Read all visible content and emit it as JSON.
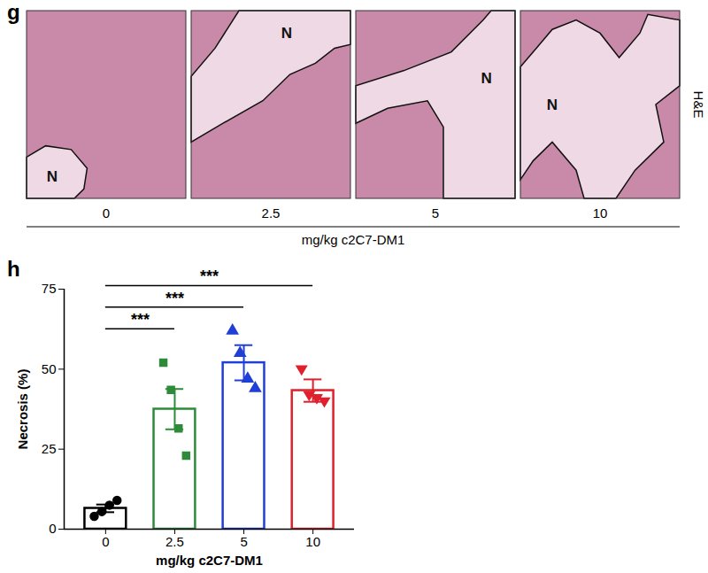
{
  "panel_g": {
    "label": "g",
    "stain": "H&E",
    "region_label": "N",
    "conditions": [
      "0",
      "2.5",
      "5",
      "10"
    ],
    "xlabel": "mg/kg c2C7-DM1"
  },
  "chart_data": {
    "type": "bar",
    "label": "h",
    "categories": [
      "0",
      "2.5",
      "5",
      "10"
    ],
    "values": [
      6.5,
      37.5,
      52,
      43.3
    ],
    "errors": [
      1.2,
      6.3,
      5.5,
      3.5
    ],
    "points": [
      [
        4,
        5.5,
        7.5,
        9
      ],
      [
        52,
        43.5,
        31.5,
        23
      ],
      [
        62,
        55,
        47,
        44
      ],
      [
        50,
        42,
        41,
        40
      ]
    ],
    "colors": [
      "#000000",
      "#2e8b3a",
      "#1f3fd6",
      "#e0202c"
    ],
    "markers": [
      "circle",
      "square",
      "triangle",
      "triangle-down"
    ],
    "xlabel": "mg/kg c2C7-DM1",
    "ylabel": "Necrosis (%)",
    "ylim": [
      0,
      75
    ],
    "yticks": [
      0,
      25,
      50,
      75
    ],
    "annotations": [
      {
        "from": "0",
        "to": "2.5",
        "label": "***"
      },
      {
        "from": "0",
        "to": "5",
        "label": "***"
      },
      {
        "from": "0",
        "to": "10",
        "label": "***"
      }
    ]
  }
}
